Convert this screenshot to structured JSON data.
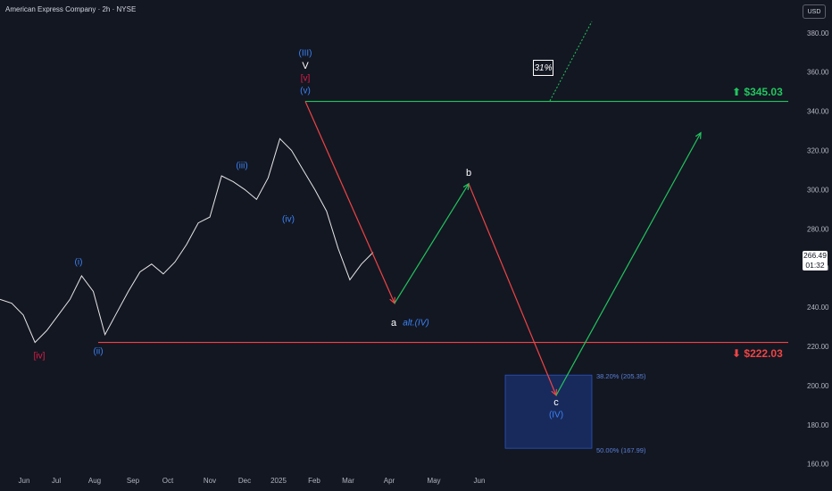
{
  "header": {
    "title": "American Express Company · 2h · NYSE",
    "currency": "USD"
  },
  "price_tag": {
    "price": "266.49",
    "countdown": "01:32"
  },
  "levels": [
    {
      "value": 345.03,
      "label": "$345.03",
      "color": "#22c55e",
      "arrow": "up-arrow-icon"
    },
    {
      "value": 222.03,
      "label": "$222.03",
      "color": "#ef4444",
      "arrow": "down-arrow-icon"
    }
  ],
  "fib": {
    "upper_value": 205.35,
    "upper_label": "38.20% (205.35)",
    "lower_value": 167.99,
    "lower_label": "50.00% (167.99)"
  },
  "probability_label": "31%",
  "wave_labels": {
    "III": "(III)",
    "V": "V",
    "v_red": "[v]",
    "v_blue": "(v)",
    "iii": "(iii)",
    "iv": "(iv)",
    "i": "(i)",
    "ii": "(ii)",
    "iv_red": "[iv]",
    "a": "a",
    "alt_iv": "alt.(IV)",
    "b": "b",
    "c": "c",
    "IV": "(IV)"
  },
  "chart_data": {
    "type": "line",
    "title": "American Express Company · 2h · NYSE",
    "ylim": [
      155,
      390
    ],
    "y_ticks": [
      160,
      180,
      200,
      220,
      240,
      260,
      280,
      300,
      320,
      340,
      360,
      380
    ],
    "x_ticks": [
      "Jun",
      "Jul",
      "Aug",
      "Sep",
      "Oct",
      "Nov",
      "Dec",
      "2025",
      "Feb",
      "Mar",
      "Apr",
      "May",
      "Jun"
    ],
    "series": [
      {
        "values": [
          244,
          242,
          236,
          222,
          228,
          236,
          244,
          256,
          248,
          226,
          237,
          248,
          258,
          262,
          257,
          263,
          272,
          283,
          286,
          307,
          304,
          300,
          295,
          306,
          326,
          320,
          310,
          300,
          289,
          270,
          254,
          262,
          268
        ]
      }
    ],
    "projection": [
      {
        "label": "a",
        "value": 242
      },
      {
        "label": "b",
        "value": 303
      },
      {
        "label": "c",
        "value": 195
      },
      {
        "label": "target",
        "value": 329
      }
    ]
  }
}
